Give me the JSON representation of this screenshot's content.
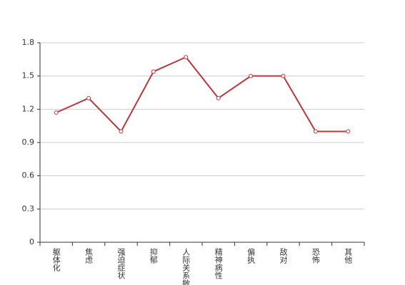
{
  "chart_data": {
    "type": "line",
    "categories": [
      "躯体化",
      "焦虑",
      "强迫症状",
      "抑郁",
      "人际关系敏感",
      "精神病性",
      "偏执",
      "敌对",
      "恐怖",
      "其他"
    ],
    "series": [
      {
        "color": "#b5393a",
        "values": [
          1.17,
          1.3,
          1.0,
          1.54,
          1.67,
          1.3,
          1.5,
          1.5,
          1.0,
          1.0
        ]
      }
    ],
    "ylim": [
      0,
      1.8
    ],
    "yticks": [
      0,
      0.3,
      0.6,
      0.9,
      1.2,
      1.5,
      1.8
    ],
    "grid": true
  }
}
